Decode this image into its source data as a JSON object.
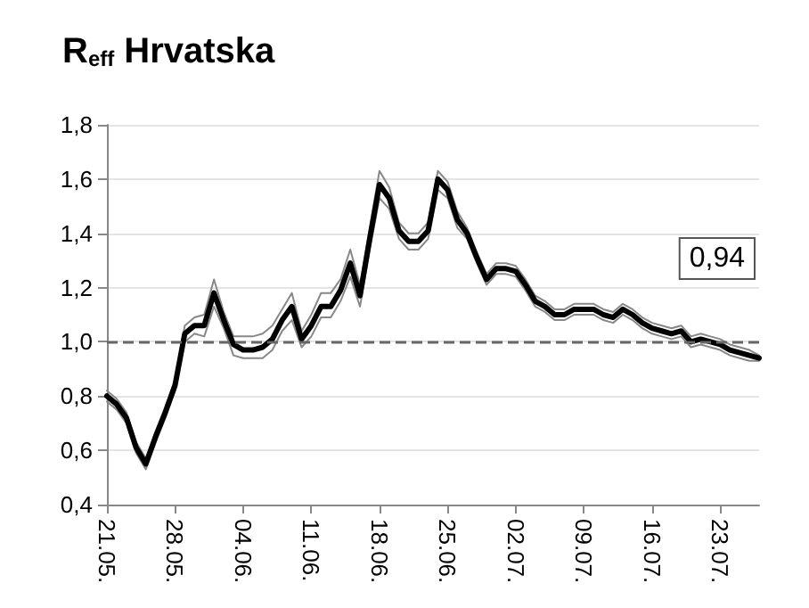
{
  "chart_data": {
    "type": "line",
    "title": "R$_{eff}$ Hrvatska",
    "categories": [
      "21.05.",
      null,
      null,
      null,
      null,
      null,
      null,
      "28.05.",
      null,
      null,
      null,
      null,
      null,
      null,
      "04.06.",
      null,
      null,
      null,
      null,
      null,
      null,
      "11.06.",
      null,
      null,
      null,
      null,
      null,
      null,
      "18.06.",
      null,
      null,
      null,
      null,
      null,
      null,
      "25.06.",
      null,
      null,
      null,
      null,
      null,
      null,
      "02.07.",
      null,
      null,
      null,
      null,
      null,
      null,
      "09.07.",
      null,
      null,
      null,
      null,
      null,
      null,
      "16.07.",
      null,
      null,
      null,
      null,
      null,
      null,
      "23.07.",
      null,
      null,
      null,
      null
    ],
    "series": [
      {
        "color": "#000000",
        "values": [
          0.8,
          0.77,
          0.72,
          0.61,
          0.55,
          0.65,
          0.74,
          0.84,
          1.03,
          1.06,
          1.06,
          1.18,
          1.08,
          0.99,
          0.97,
          0.97,
          0.98,
          1.01,
          1.08,
          1.13,
          1.01,
          1.06,
          1.13,
          1.13,
          1.19,
          1.29,
          1.17,
          1.38,
          1.58,
          1.53,
          1.41,
          1.37,
          1.37,
          1.41,
          1.6,
          1.56,
          1.45,
          1.4,
          1.31,
          1.23,
          1.27,
          1.27,
          1.26,
          1.21,
          1.15,
          1.13,
          1.1,
          1.1,
          1.12,
          1.12,
          1.12,
          1.1,
          1.09,
          1.12,
          1.1,
          1.07,
          1.05,
          1.04,
          1.03,
          1.04,
          1.0,
          1.01,
          1.0,
          0.99,
          0.97,
          0.96,
          0.95,
          0.94
        ]
      },
      {
        "color": "#888888",
        "values": [
          0.82,
          0.79,
          0.74,
          0.63,
          0.57,
          0.67,
          0.76,
          0.86,
          1.06,
          1.09,
          1.1,
          1.23,
          1.11,
          1.02,
          1.02,
          1.02,
          1.03,
          1.06,
          1.12,
          1.18,
          1.04,
          1.1,
          1.18,
          1.18,
          1.23,
          1.34,
          1.21,
          1.42,
          1.63,
          1.57,
          1.44,
          1.4,
          1.4,
          1.44,
          1.63,
          1.59,
          1.48,
          1.42,
          1.33,
          1.25,
          1.29,
          1.29,
          1.28,
          1.23,
          1.17,
          1.15,
          1.12,
          1.12,
          1.14,
          1.14,
          1.14,
          1.12,
          1.11,
          1.14,
          1.12,
          1.09,
          1.07,
          1.06,
          1.05,
          1.06,
          1.02,
          1.03,
          1.02,
          1.01,
          0.99,
          0.98,
          0.97,
          0.95
        ]
      },
      {
        "color": "#888888",
        "values": [
          0.78,
          0.75,
          0.7,
          0.59,
          0.53,
          0.63,
          0.72,
          0.82,
          1.0,
          1.03,
          1.02,
          1.13,
          1.05,
          0.95,
          0.94,
          0.94,
          0.94,
          0.97,
          1.04,
          1.08,
          0.98,
          1.02,
          1.09,
          1.09,
          1.15,
          1.24,
          1.13,
          1.34,
          1.53,
          1.49,
          1.38,
          1.34,
          1.34,
          1.38,
          1.56,
          1.53,
          1.42,
          1.38,
          1.29,
          1.21,
          1.25,
          1.25,
          1.24,
          1.19,
          1.13,
          1.11,
          1.08,
          1.08,
          1.1,
          1.1,
          1.1,
          1.08,
          1.07,
          1.1,
          1.08,
          1.05,
          1.03,
          1.02,
          1.01,
          1.02,
          0.98,
          0.99,
          0.98,
          0.97,
          0.95,
          0.94,
          0.93,
          0.93
        ]
      }
    ],
    "ylim": [
      0.4,
      1.8
    ],
    "yticks": [
      {
        "value": 0.4,
        "label": "0,4"
      },
      {
        "value": 0.6,
        "label": "0,6"
      },
      {
        "value": 0.8,
        "label": "0,8"
      },
      {
        "value": 1.0,
        "label": "1,0"
      },
      {
        "value": 1.2,
        "label": "1,2"
      },
      {
        "value": 1.4,
        "label": "1,4"
      },
      {
        "value": 1.6,
        "label": "1,6"
      },
      {
        "value": 1.8,
        "label": "1,8"
      }
    ],
    "ref_lines": [
      {
        "axis": "y",
        "value": 1.0,
        "color": "#666666",
        "line_style": "dashed"
      }
    ],
    "annotations": [
      "0,94"
    ],
    "grid": "y",
    "marker": "none",
    "line_style": "solid"
  }
}
